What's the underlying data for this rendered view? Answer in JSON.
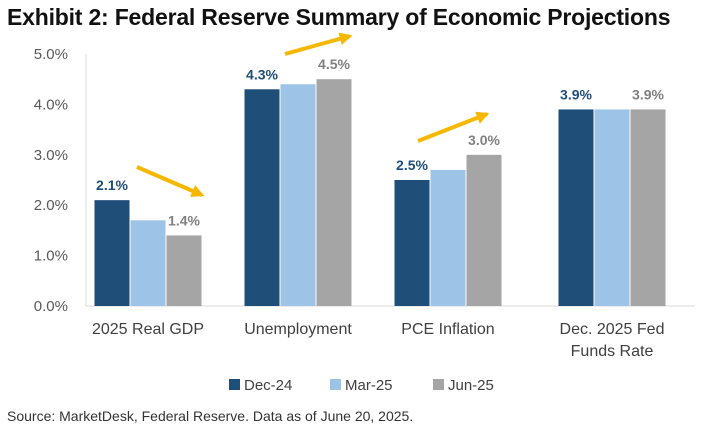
{
  "title": "Exhibit 2: Federal Reserve Summary of Economic Projections",
  "source": "Source: MarketDesk, Federal Reserve. Data as of June 20, 2025.",
  "colors": {
    "series": [
      "#1f4e79",
      "#9dc3e6",
      "#a5a5a5"
    ],
    "arrow": "#f5b700",
    "axis_text": "#595959",
    "label_dark": "#1f4e79",
    "label_gray": "#808080",
    "axis_line": "#d9d9d9"
  },
  "chart_data": {
    "type": "bar",
    "categories": [
      "2025 Real GDP",
      "Unemployment",
      "PCE Inflation",
      "Dec. 2025 Fed Funds Rate"
    ],
    "series": [
      {
        "name": "Dec-24",
        "values": [
          2.1,
          4.3,
          2.5,
          3.9
        ]
      },
      {
        "name": "Mar-25",
        "values": [
          1.7,
          4.4,
          2.7,
          3.9
        ]
      },
      {
        "name": "Jun-25",
        "values": [
          1.4,
          4.5,
          3.0,
          3.9
        ]
      }
    ],
    "yticks": [
      "0.0%",
      "1.0%",
      "2.0%",
      "3.0%",
      "4.0%",
      "5.0%"
    ],
    "ylim": [
      0,
      5
    ],
    "grid": false,
    "legend": "bottom",
    "data_labels": [
      {
        "category": 0,
        "series": 0,
        "text": "2.1%"
      },
      {
        "category": 0,
        "series": 2,
        "text": "1.4%"
      },
      {
        "category": 1,
        "series": 0,
        "text": "4.3%"
      },
      {
        "category": 1,
        "series": 2,
        "text": "4.5%"
      },
      {
        "category": 2,
        "series": 0,
        "text": "2.5%"
      },
      {
        "category": 2,
        "series": 2,
        "text": "3.0%"
      },
      {
        "category": 3,
        "series": 0,
        "text": "3.9%"
      },
      {
        "category": 3,
        "series": 2,
        "text": "3.9%"
      }
    ],
    "trend_arrows": [
      {
        "category": 0,
        "direction": "down"
      },
      {
        "category": 1,
        "direction": "up"
      },
      {
        "category": 2,
        "direction": "up"
      }
    ]
  }
}
